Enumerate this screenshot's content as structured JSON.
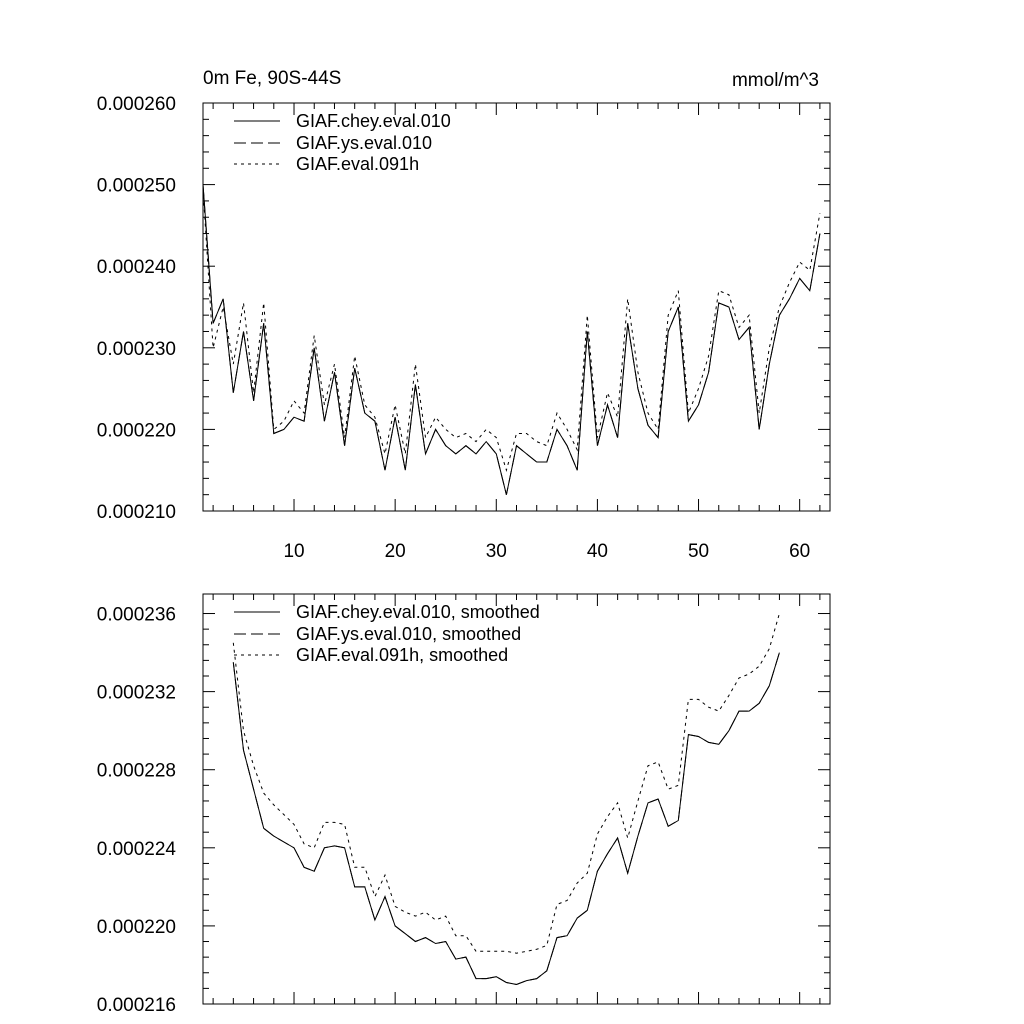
{
  "chart_data": [
    {
      "type": "line",
      "title_left": "0m Fe, 90S-44S",
      "title_right": "mmol/m^3",
      "xlim": [
        1,
        63
      ],
      "ylim": [
        0.00021,
        0.00026
      ],
      "yticks": [
        "0.000260",
        "0.000250",
        "0.000240",
        "0.000230",
        "0.000220",
        "0.000210"
      ],
      "ytick_values": [
        0.00026,
        0.00025,
        0.00024,
        0.00023,
        0.00022,
        0.00021
      ],
      "xticks": [
        "10",
        "20",
        "30",
        "40",
        "50",
        "60"
      ],
      "xtick_values": [
        10,
        20,
        30,
        40,
        50,
        60
      ],
      "x_start": 1,
      "series": [
        {
          "name": "GIAF.chey.eval.010",
          "style": "solid",
          "values": [
            0.00025,
            0.000233,
            0.000236,
            0.0002245,
            0.000232,
            0.0002235,
            0.000233,
            0.0002195,
            0.00022,
            0.0002215,
            0.000221,
            0.00023,
            0.000221,
            0.000227,
            0.000218,
            0.0002275,
            0.000222,
            0.000221,
            0.000215,
            0.0002215,
            0.000215,
            0.0002255,
            0.000217,
            0.00022,
            0.000218,
            0.000217,
            0.000218,
            0.000217,
            0.0002185,
            0.000217,
            0.000212,
            0.000218,
            0.000217,
            0.000216,
            0.000216,
            0.00022,
            0.000218,
            0.000215,
            0.000232,
            0.000218,
            0.000223,
            0.000219,
            0.000233,
            0.000225,
            0.0002205,
            0.000219,
            0.000232,
            0.000235,
            0.000221,
            0.000223,
            0.000227,
            0.0002355,
            0.000235,
            0.000231,
            0.0002325,
            0.00022,
            0.000228,
            0.000234,
            0.000236,
            0.0002385,
            0.000237,
            0.000244
          ]
        },
        {
          "name": "GIAF.ys.eval.010",
          "style": "dashed",
          "values": [
            0.00025,
            0.000233,
            0.000236,
            0.0002245,
            0.000232,
            0.0002235,
            0.000233,
            0.0002195,
            0.00022,
            0.0002215,
            0.000221,
            0.00023,
            0.000221,
            0.000227,
            0.000218,
            0.0002275,
            0.000222,
            0.000221,
            0.000215,
            0.0002215,
            0.000215,
            0.0002255,
            0.000217,
            0.00022,
            0.000218,
            0.000217,
            0.000218,
            0.000217,
            0.0002185,
            0.000217,
            0.000212,
            0.000218,
            0.000217,
            0.000216,
            0.000216,
            0.00022,
            0.000218,
            0.000215,
            0.000232,
            0.000218,
            0.000223,
            0.000219,
            0.000233,
            0.000225,
            0.0002205,
            0.000219,
            0.000232,
            0.000235,
            0.000221,
            0.000223,
            0.000227,
            0.0002355,
            0.000235,
            0.000231,
            0.0002325,
            0.00022,
            0.000228,
            0.000234,
            0.000236,
            0.0002385,
            0.000237,
            0.000244
          ]
        },
        {
          "name": "GIAF.eval.091h",
          "style": "dotted",
          "values": [
            0.0002495,
            0.00023,
            0.000235,
            0.000228,
            0.0002355,
            0.0002245,
            0.0002355,
            0.00022,
            0.000221,
            0.0002235,
            0.000222,
            0.0002315,
            0.000223,
            0.000228,
            0.000219,
            0.000229,
            0.000223,
            0.0002215,
            0.000217,
            0.000223,
            0.000217,
            0.000228,
            0.000219,
            0.0002215,
            0.00022,
            0.000219,
            0.0002195,
            0.0002185,
            0.00022,
            0.000219,
            0.000215,
            0.0002195,
            0.0002195,
            0.0002185,
            0.000218,
            0.000222,
            0.00022,
            0.0002175,
            0.000234,
            0.000219,
            0.0002245,
            0.0002215,
            0.000236,
            0.000227,
            0.000222,
            0.00022,
            0.000234,
            0.000237,
            0.000222,
            0.000225,
            0.000229,
            0.000237,
            0.0002365,
            0.0002325,
            0.000234,
            0.000222,
            0.00023,
            0.000235,
            0.000238,
            0.0002405,
            0.0002395,
            0.0002465
          ]
        }
      ]
    },
    {
      "type": "line",
      "xlim": [
        1,
        63
      ],
      "ylim": [
        0.000216,
        0.000237
      ],
      "yticks": [
        "0.000236",
        "0.000232",
        "0.000228",
        "0.000224",
        "0.000220",
        "0.000216"
      ],
      "ytick_values": [
        0.000236,
        0.000232,
        0.000228,
        0.000224,
        0.00022,
        0.000216
      ],
      "xtick_values": [
        10,
        20,
        30,
        40,
        50,
        60
      ],
      "x_start": 4,
      "series": [
        {
          "name": "GIAF.chey.eval.010, smoothed",
          "style": "solid",
          "values": [
            0.0002335,
            0.000229,
            0.000227,
            0.000225,
            0.0002246,
            0.0002243,
            0.000224,
            0.000223,
            0.0002228,
            0.000224,
            0.0002241,
            0.000224,
            0.000222,
            0.000222,
            0.0002203,
            0.0002215,
            0.00022,
            0.0002196,
            0.0002192,
            0.0002194,
            0.0002191,
            0.0002192,
            0.0002183,
            0.0002184,
            0.0002173,
            0.0002173,
            0.0002174,
            0.0002171,
            0.000217,
            0.0002172,
            0.0002173,
            0.0002177,
            0.0002194,
            0.0002195,
            0.0002204,
            0.0002208,
            0.0002228,
            0.0002237,
            0.0002245,
            0.0002227,
            0.0002246,
            0.0002263,
            0.0002265,
            0.0002251,
            0.0002254,
            0.0002298,
            0.0002297,
            0.0002294,
            0.0002293,
            0.00023,
            0.000231,
            0.000231,
            0.0002314,
            0.0002323,
            0.000234
          ]
        },
        {
          "name": "GIAF.ys.eval.010, smoothed",
          "style": "dashed",
          "values": [
            0.0002335,
            0.000229,
            0.000227,
            0.000225,
            0.0002246,
            0.0002243,
            0.000224,
            0.000223,
            0.0002228,
            0.000224,
            0.0002241,
            0.000224,
            0.000222,
            0.000222,
            0.0002203,
            0.0002215,
            0.00022,
            0.0002196,
            0.0002192,
            0.0002194,
            0.0002191,
            0.0002192,
            0.0002183,
            0.0002184,
            0.0002173,
            0.0002173,
            0.0002174,
            0.0002171,
            0.000217,
            0.0002172,
            0.0002173,
            0.0002177,
            0.0002194,
            0.0002195,
            0.0002204,
            0.0002208,
            0.0002228,
            0.0002237,
            0.0002245,
            0.0002227,
            0.0002246,
            0.0002263,
            0.0002265,
            0.0002251,
            0.0002254,
            0.0002298,
            0.0002297,
            0.0002294,
            0.0002293,
            0.00023,
            0.000231,
            0.000231,
            0.0002314,
            0.0002323,
            0.000234
          ]
        },
        {
          "name": "GIAF.eval.091h, smoothed",
          "style": "dotted",
          "values": [
            0.0002345,
            0.00023,
            0.0002282,
            0.0002268,
            0.0002262,
            0.0002257,
            0.0002252,
            0.0002242,
            0.000224,
            0.0002253,
            0.0002253,
            0.0002252,
            0.000223,
            0.000223,
            0.0002215,
            0.0002226,
            0.000221,
            0.0002207,
            0.0002205,
            0.0002207,
            0.0002203,
            0.0002205,
            0.0002195,
            0.0002195,
            0.0002187,
            0.0002187,
            0.0002187,
            0.0002187,
            0.0002186,
            0.0002187,
            0.0002188,
            0.000219,
            0.0002211,
            0.0002213,
            0.0002222,
            0.0002227,
            0.0002247,
            0.0002256,
            0.0002263,
            0.0002245,
            0.0002264,
            0.0002282,
            0.0002284,
            0.000227,
            0.0002272,
            0.0002316,
            0.0002316,
            0.0002312,
            0.000231,
            0.0002318,
            0.0002327,
            0.0002329,
            0.0002333,
            0.0002342,
            0.000236
          ]
        }
      ]
    }
  ]
}
